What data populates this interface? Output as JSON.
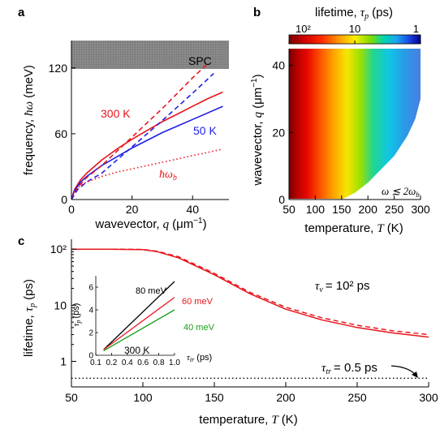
{
  "panel_letters": [
    "a",
    "b",
    "c"
  ],
  "panel_a": {
    "ylabel_text": "frequency,",
    "ylabel_symbol": "ħω",
    "ylabel_unit": "(meV)",
    "xlabel_text": "wavevector,",
    "xlabel_symbol": "q",
    "xlabel_unit": "(μm",
    "xlabel_exp": "−1",
    "xlabel_close": ")",
    "yticks": [
      "0",
      "60",
      "120"
    ],
    "xticks": [
      "0",
      "20",
      "40"
    ],
    "spc_label": "SPC",
    "label_300K": "300 K",
    "label_50K": "50 K",
    "label_wb": "ħω",
    "label_wb_sub": "b"
  },
  "panel_b": {
    "colorbar_title": "lifetime,",
    "colorbar_symbol": "τ",
    "colorbar_sub": "p",
    "colorbar_unit": "(ps)",
    "colorbar_ticks": [
      "10²",
      "10",
      "1"
    ],
    "ylabel_text": "wavevector,",
    "ylabel_symbol": "q",
    "ylabel_unit": "(μm",
    "ylabel_exp": "−1",
    "ylabel_close": ")",
    "xlabel_text": "temperature,",
    "xlabel_symbol": "T",
    "xlabel_unit": "(K)",
    "yticks": [
      "0",
      "20",
      "40"
    ],
    "xticks": [
      "50",
      "100",
      "150",
      "200",
      "250",
      "300"
    ],
    "region_label": "ω ≲ 2ω",
    "region_label_sub": "b"
  },
  "panel_c": {
    "ylabel_text": "lifetime,",
    "ylabel_symbol": "τ",
    "ylabel_sub": "p",
    "ylabel_unit": "(ps)",
    "xlabel_text": "temperature,",
    "xlabel_symbol": "T",
    "xlabel_unit": "(K)",
    "yticks": [
      "10²",
      "10",
      "1"
    ],
    "xticks": [
      "50",
      "100",
      "150",
      "200",
      "250",
      "300"
    ],
    "tau_v_symbol": "τ",
    "tau_v_sub": "v",
    "tau_v_text": "= 10² ps",
    "tau_tr_symbol": "τ",
    "tau_tr_sub": "tr",
    "tau_tr_text": "= 0.5 ps",
    "inset": {
      "ylabel_symbol": "τ",
      "ylabel_sub": "p",
      "ylabel_unit": "(ps)",
      "xlabel_symbol": "τ",
      "xlabel_sub": "tr",
      "xlabel_unit": "(ps)",
      "yticks": [
        "0",
        "2",
        "4",
        "6"
      ],
      "xticks": [
        "0.1",
        "0.2",
        "0.4",
        "0.6",
        "0.8",
        "1.0"
      ],
      "temp_label": "300 K",
      "series_labels": [
        "80 meV",
        "60 meV",
        "40 meV"
      ]
    }
  },
  "colors": {
    "red": "#e8141c",
    "blue": "#1f1fe6",
    "green": "#1a9e1a",
    "black": "#000000",
    "spc_gray": "#808080"
  },
  "chart_data": [
    {
      "type": "line",
      "title": "",
      "xlabel": "wavevector, q (μm−1)",
      "ylabel": "frequency, ħω (meV)",
      "xlim": [
        0,
        52
      ],
      "ylim": [
        0,
        145
      ],
      "shaded_band": {
        "label": "SPC",
        "y_from": 120,
        "y_to": 145
      },
      "series": [
        {
          "name": "300 K",
          "style": "solid",
          "color": "#e8141c",
          "x": [
            0,
            1,
            3,
            5,
            10,
            15,
            20,
            25,
            30,
            35,
            40,
            45,
            50
          ],
          "y": [
            0,
            9,
            18,
            24,
            36,
            46,
            55,
            63,
            71,
            78,
            85,
            92,
            98
          ]
        },
        {
          "name": "50 K",
          "style": "solid",
          "color": "#1f1fe6",
          "x": [
            0,
            1,
            3,
            5,
            10,
            15,
            20,
            25,
            30,
            35,
            40,
            45,
            50
          ],
          "y": [
            0,
            8,
            16,
            21,
            31,
            39,
            47,
            54,
            61,
            67,
            73,
            79,
            85
          ]
        },
        {
          "name": "300 K",
          "style": "dashed",
          "color": "#e8141c",
          "x": [
            0,
            2,
            5,
            10,
            20,
            30,
            40,
            45
          ],
          "y": [
            0,
            11,
            20,
            31,
            57,
            83,
            111,
            124
          ]
        },
        {
          "name": "50 K",
          "style": "dashed",
          "color": "#1f1fe6",
          "x": [
            0,
            2,
            5,
            10,
            20,
            30,
            40,
            47
          ],
          "y": [
            0,
            9,
            16,
            24,
            48,
            72,
            97,
            115
          ]
        },
        {
          "name": "ħωb",
          "style": "dotted",
          "color": "#e8141c",
          "x": [
            0,
            1,
            3,
            5,
            10,
            15,
            20,
            25,
            30,
            35,
            40,
            45,
            50
          ],
          "y": [
            0,
            7,
            13,
            16,
            21,
            25,
            28,
            31,
            34,
            37,
            40,
            43,
            46
          ]
        }
      ]
    },
    {
      "type": "heatmap",
      "title": "lifetime, τp (ps)",
      "xlabel": "temperature, T (K)",
      "ylabel": "wavevector, q (μm−1)",
      "xlim": [
        50,
        300
      ],
      "ylim": [
        0,
        45
      ],
      "colorbar": {
        "scale": "log",
        "range_ps": [
          100,
          1
        ],
        "ticks": [
          "10²",
          "10",
          "1"
        ]
      },
      "excluded_region": {
        "label": "ω ≲ 2ωb",
        "boundary_T": [
          150,
          175,
          200,
          225,
          250,
          275,
          290,
          300
        ],
        "boundary_q": [
          0,
          2,
          5,
          9,
          13,
          19,
          24,
          30
        ]
      }
    },
    {
      "type": "line",
      "title": "",
      "xlabel": "temperature, T (K)",
      "ylabel": "lifetime, τp (ps)",
      "xlim": [
        50,
        300
      ],
      "yscale": "log",
      "ylim": [
        0.35,
        150
      ],
      "series": [
        {
          "name": "τv = 10² ps",
          "style": "solid",
          "color": "#e8141c",
          "x": [
            50,
            75,
            100,
            110,
            125,
            150,
            175,
            200,
            225,
            250,
            275,
            300
          ],
          "y": [
            100,
            100,
            98,
            90,
            70,
            35,
            16,
            8.5,
            5.5,
            4.0,
            3.2,
            2.7
          ]
        },
        {
          "name": "τv = 10² ps",
          "style": "dashed",
          "color": "#e8141c",
          "x": [
            50,
            75,
            100,
            110,
            125,
            150,
            175,
            200,
            225,
            250,
            275,
            300
          ],
          "y": [
            100,
            100,
            99,
            92,
            73,
            37,
            17,
            9.2,
            6.0,
            4.4,
            3.5,
            3.0
          ]
        },
        {
          "name": "τtr = 0.5 ps",
          "style": "dotted",
          "color": "#000000",
          "x": [
            50,
            300
          ],
          "y": [
            0.5,
            0.5
          ]
        }
      ],
      "inset": {
        "type": "line",
        "xlabel": "τtr (ps)",
        "ylabel": "τp (ps)",
        "xlim": [
          0,
          1.0
        ],
        "ylim": [
          0,
          7
        ],
        "annotation": "300 K",
        "series": [
          {
            "name": "80 meV",
            "color": "#000000",
            "x": [
              0.1,
              1.0
            ],
            "y": [
              0.5,
              6.5
            ]
          },
          {
            "name": "60 meV",
            "color": "#e8141c",
            "x": [
              0.1,
              1.0
            ],
            "y": [
              0.5,
              5.1
            ]
          },
          {
            "name": "40 meV",
            "color": "#1a9e1a",
            "x": [
              0.1,
              1.0
            ],
            "y": [
              0.4,
              4.0
            ]
          }
        ]
      }
    }
  ]
}
